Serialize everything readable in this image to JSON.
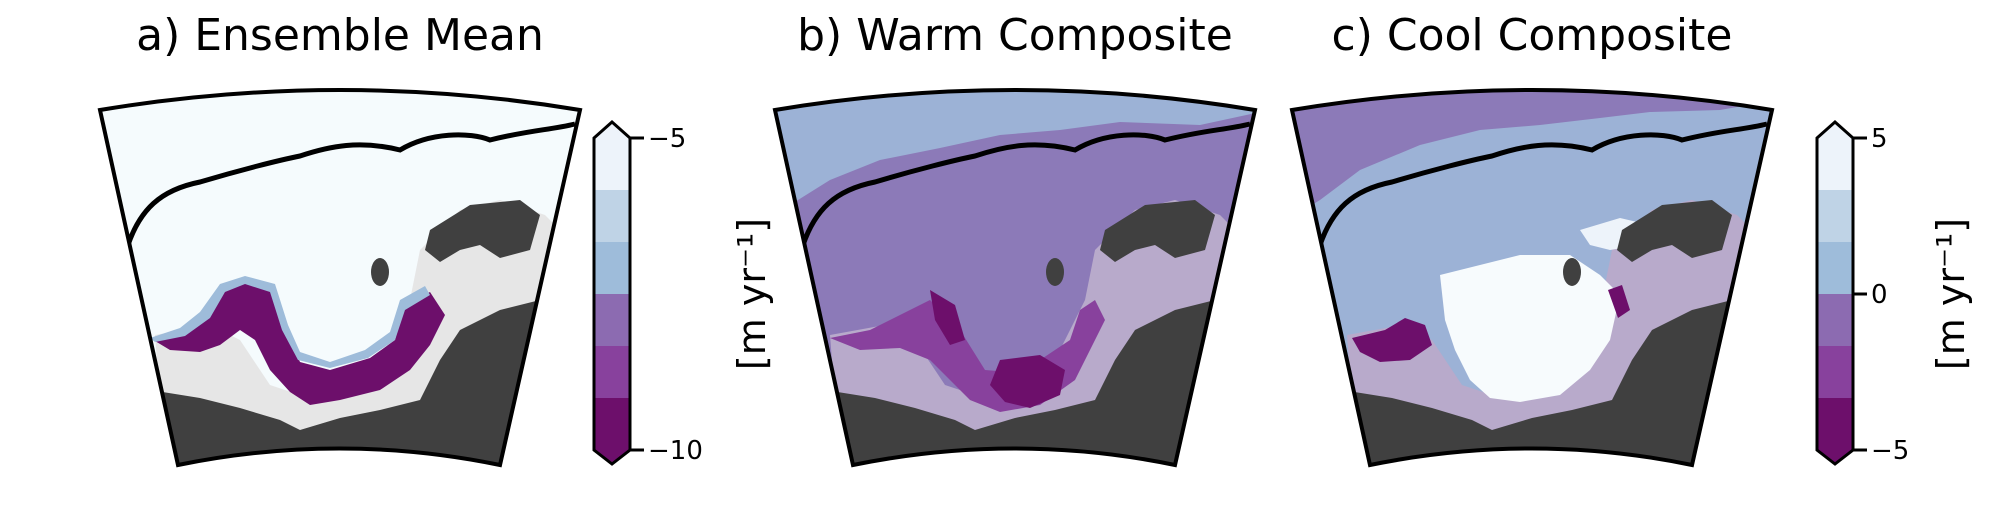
{
  "panels": [
    {
      "title": "a) Ensemble Mean",
      "field": "mean"
    },
    {
      "title": "b) Warm Composite",
      "field": "warm"
    },
    {
      "title": "c) Cool Composite",
      "field": "cool"
    }
  ],
  "colorbars": [
    {
      "ticks": [
        "−5",
        "−10"
      ],
      "tick_values": [
        -5,
        -10
      ],
      "vmin": -10,
      "vmax": -5,
      "units": "[m yr⁻¹]"
    },
    {
      "ticks": [
        "5",
        "0",
        "−5"
      ],
      "tick_values": [
        5,
        0,
        -5
      ],
      "vmin": -5,
      "vmax": 5,
      "units": "[m yr⁻¹]"
    }
  ],
  "colors": {
    "levels": [
      "#6d0f6b",
      "#88419d",
      "#8c6bb1",
      "#9ebcda",
      "#bfd3e6",
      "#edf3fa"
    ],
    "land": "#404040",
    "grounded_ice_light": "#e6e6e6",
    "grounded_ice_purple": "#b8aacb",
    "mean_background": "#f5fbfd",
    "warm_background": "#8c7ab8",
    "cool_background": "#9cb2d6",
    "cool_shelf": "#f7fbfd"
  }
}
